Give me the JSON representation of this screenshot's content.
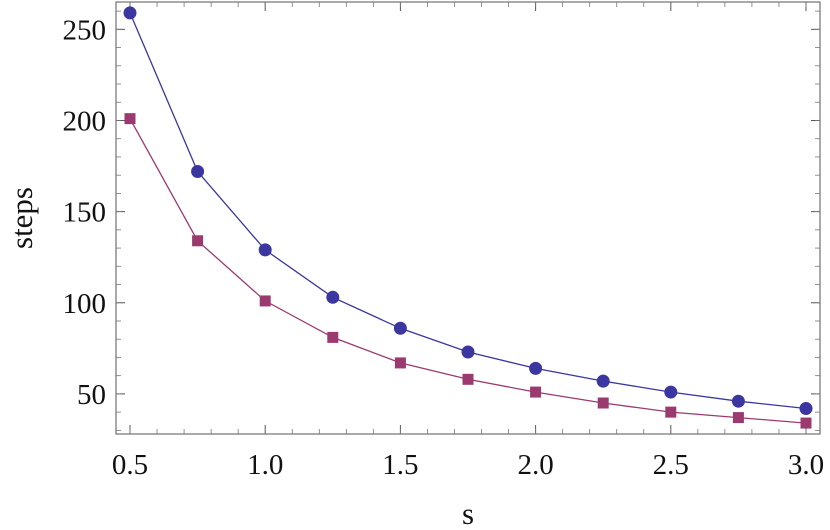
{
  "chart_data": {
    "type": "line",
    "title": "",
    "xlabel": "s",
    "ylabel": "steps",
    "xlim": [
      0.5,
      3.0
    ],
    "ylim": [
      28,
      265
    ],
    "x_ticks": [
      0.5,
      1.0,
      1.5,
      2.0,
      2.5,
      3.0
    ],
    "x_tick_labels": [
      "0.5",
      "1.0",
      "1.5",
      "2.0",
      "2.5",
      "3.0"
    ],
    "y_ticks": [
      50,
      100,
      150,
      200,
      250
    ],
    "y_tick_labels": [
      "50",
      "100",
      "150",
      "200",
      "250"
    ],
    "grid": false,
    "legend": "none",
    "x": [
      0.5,
      0.75,
      1.0,
      1.25,
      1.5,
      1.75,
      2.0,
      2.25,
      2.5,
      2.75,
      3.0
    ],
    "series": [
      {
        "marker": "circle",
        "color": "#3b36a0",
        "values": [
          259,
          172,
          129,
          103,
          86,
          73,
          64,
          57,
          51,
          46,
          42
        ]
      },
      {
        "marker": "square",
        "color": "#9b3a6e",
        "values": [
          201,
          134,
          101,
          81,
          67,
          58,
          51,
          45,
          40,
          37,
          34
        ]
      }
    ]
  }
}
